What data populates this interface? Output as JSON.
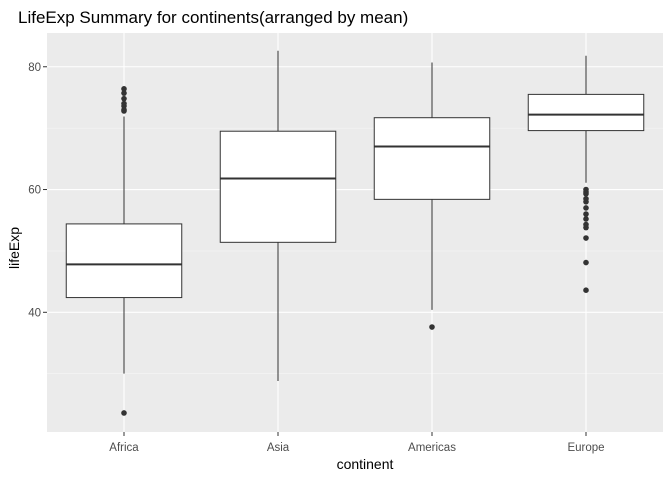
{
  "chart_data": {
    "type": "boxplot",
    "title": "LifeExp Summary for continents(arranged by mean)",
    "xlabel": "continent",
    "ylabel": "lifeExp",
    "ylim": [
      20.5,
      85.5
    ],
    "y_ticks": [
      40,
      60,
      80
    ],
    "y_minor_ticks": [
      30,
      50,
      70
    ],
    "grid": true,
    "categories": [
      "Africa",
      "Asia",
      "Americas",
      "Europe"
    ],
    "boxes": [
      {
        "category": "Africa",
        "min": 30.0,
        "q1": 42.4,
        "median": 47.8,
        "q3": 54.4,
        "max": 71.9,
        "outliers": [
          23.6,
          72.8,
          73.0,
          73.6,
          74.0,
          74.8,
          75.7,
          76.4
        ]
      },
      {
        "category": "Asia",
        "min": 28.8,
        "q1": 51.4,
        "median": 61.8,
        "q3": 69.5,
        "max": 82.6,
        "outliers": []
      },
      {
        "category": "Americas",
        "min": 40.4,
        "q1": 58.4,
        "median": 67.0,
        "q3": 71.7,
        "max": 80.7,
        "outliers": [
          37.6
        ]
      },
      {
        "category": "Europe",
        "min": 61.1,
        "q1": 69.6,
        "median": 72.2,
        "q3": 75.5,
        "max": 81.8,
        "outliers": [
          43.6,
          48.1,
          52.1,
          53.8,
          54.3,
          55.2,
          56.0,
          57.0,
          58.0,
          58.5,
          59.3,
          59.6,
          60.0
        ]
      }
    ],
    "colors": {
      "panel_background": "#ebebeb",
      "grid_major": "#ffffff",
      "grid_minor": "#f5f5f5",
      "box_fill": "#ffffff",
      "box_stroke": "#333333",
      "outlier": "#333333"
    }
  }
}
